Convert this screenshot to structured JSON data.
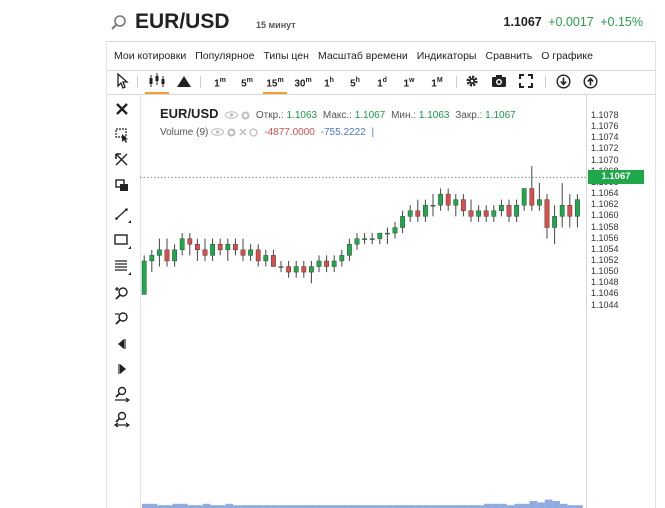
{
  "header": {
    "symbol": "EUR/USD",
    "timeframe": "15 минут",
    "price": "1.1067",
    "change": "+0.0017",
    "change_pct": "+0.15%"
  },
  "menu": {
    "items": [
      "Мои котировки",
      "Популярное",
      "Типы цен",
      "Масштаб времени",
      "Индикаторы",
      "Сравнить",
      "О графике"
    ]
  },
  "toolbar": {
    "intervals": [
      {
        "label": "1",
        "sup": "m"
      },
      {
        "label": "5",
        "sup": "m"
      },
      {
        "label": "15",
        "sup": "m",
        "active": true
      },
      {
        "label": "30",
        "sup": "m"
      },
      {
        "label": "1",
        "sup": "h"
      },
      {
        "label": "5",
        "sup": "h"
      },
      {
        "label": "1",
        "sup": "d"
      },
      {
        "label": "1",
        "sup": "w"
      },
      {
        "label": "1",
        "sup": "M"
      }
    ]
  },
  "legend": {
    "symbol": "EUR/USD",
    "open_label": "Откр.:",
    "open": "1.1063",
    "high_label": "Макс.:",
    "high": "1.1067",
    "low_label": "Мин.:",
    "low": "1.1063",
    "close_label": "Закр.:",
    "close": "1.1067",
    "volume_label": "Volume (9)",
    "volume_val1": "-4877.0000",
    "volume_val2": "-755.2222",
    "volume_cursor": "|"
  },
  "axis": {
    "ticks": [
      "1.1078",
      "1.1076",
      "1.1074",
      "1.1072",
      "1.1070",
      "1.1068",
      "1.1066",
      "1.1064",
      "1.1062",
      "1.1060",
      "1.1058",
      "1.1056",
      "1.1054",
      "1.1052",
      "1.1050",
      "1.1048",
      "1.1046",
      "1.1044"
    ],
    "current_price": "1.1067"
  },
  "colors": {
    "up": "#1fa84a",
    "down": "#d84c4c",
    "accent": "#f0a030",
    "volume": "#6a8fd8"
  },
  "chart_data": {
    "type": "candlestick",
    "ylim": [
      1.1043,
      1.1079
    ],
    "last_price": 1.1067,
    "candles": [
      [
        1.1046,
        1.1053,
        1.1046,
        1.1052
      ],
      [
        1.1052,
        1.1054,
        1.105,
        1.1053
      ],
      [
        1.1053,
        1.1056,
        1.1051,
        1.1054
      ],
      [
        1.1054,
        1.1056,
        1.1051,
        1.1052
      ],
      [
        1.1052,
        1.1055,
        1.1051,
        1.1054
      ],
      [
        1.1054,
        1.1057,
        1.1053,
        1.1056
      ],
      [
        1.1056,
        1.1057,
        1.1053,
        1.1055
      ],
      [
        1.1055,
        1.1056,
        1.1052,
        1.1054
      ],
      [
        1.1054,
        1.1056,
        1.1052,
        1.1053
      ],
      [
        1.1053,
        1.1056,
        1.1052,
        1.1055
      ],
      [
        1.1055,
        1.1056,
        1.1053,
        1.1054
      ],
      [
        1.1054,
        1.1056,
        1.1052,
        1.1055
      ],
      [
        1.1055,
        1.1056,
        1.1053,
        1.1054
      ],
      [
        1.1054,
        1.1056,
        1.1052,
        1.1053
      ],
      [
        1.1053,
        1.1055,
        1.1052,
        1.1054
      ],
      [
        1.1054,
        1.1055,
        1.1051,
        1.1052
      ],
      [
        1.1052,
        1.1054,
        1.1051,
        1.1053
      ],
      [
        1.1053,
        1.1054,
        1.1051,
        1.1051
      ],
      [
        1.1051,
        1.1052,
        1.105,
        1.1051
      ],
      [
        1.1051,
        1.1052,
        1.1049,
        1.105
      ],
      [
        1.105,
        1.1052,
        1.1049,
        1.1051
      ],
      [
        1.1051,
        1.1052,
        1.1049,
        1.105
      ],
      [
        1.105,
        1.1052,
        1.1048,
        1.1051
      ],
      [
        1.1051,
        1.1053,
        1.105,
        1.1052
      ],
      [
        1.1052,
        1.1053,
        1.105,
        1.1051
      ],
      [
        1.1051,
        1.1053,
        1.105,
        1.1052
      ],
      [
        1.1052,
        1.1054,
        1.1051,
        1.1053
      ],
      [
        1.1053,
        1.1056,
        1.1052,
        1.1055
      ],
      [
        1.1055,
        1.1057,
        1.1054,
        1.1056
      ],
      [
        1.1056,
        1.1057,
        1.1055,
        1.1056
      ],
      [
        1.1056,
        1.1057,
        1.1055,
        1.1056
      ],
      [
        1.1056,
        1.1057,
        1.1055,
        1.1057
      ],
      [
        1.1057,
        1.1058,
        1.1055,
        1.1057
      ],
      [
        1.1057,
        1.1059,
        1.1056,
        1.1058
      ],
      [
        1.1058,
        1.1061,
        1.1057,
        1.106
      ],
      [
        1.106,
        1.1062,
        1.1059,
        1.1061
      ],
      [
        1.1061,
        1.1063,
        1.1059,
        1.106
      ],
      [
        1.106,
        1.1063,
        1.1059,
        1.1062
      ],
      [
        1.1062,
        1.1064,
        1.106,
        1.1062
      ],
      [
        1.1062,
        1.1065,
        1.1061,
        1.1064
      ],
      [
        1.1064,
        1.1065,
        1.1061,
        1.1062
      ],
      [
        1.1062,
        1.1064,
        1.106,
        1.1063
      ],
      [
        1.1063,
        1.1064,
        1.106,
        1.1061
      ],
      [
        1.1061,
        1.1063,
        1.1059,
        1.106
      ],
      [
        1.106,
        1.1062,
        1.1059,
        1.1061
      ],
      [
        1.1061,
        1.1062,
        1.1059,
        1.106
      ],
      [
        1.106,
        1.1062,
        1.1059,
        1.1061
      ],
      [
        1.1061,
        1.1063,
        1.106,
        1.1062
      ],
      [
        1.1062,
        1.1063,
        1.1059,
        1.106
      ],
      [
        1.106,
        1.1063,
        1.1059,
        1.1062
      ],
      [
        1.1062,
        1.1065,
        1.1061,
        1.1065
      ],
      [
        1.1065,
        1.1069,
        1.1061,
        1.1062
      ],
      [
        1.1062,
        1.1066,
        1.1061,
        1.1063
      ],
      [
        1.1063,
        1.1064,
        1.1056,
        1.1058
      ],
      [
        1.1058,
        1.1062,
        1.1055,
        1.106
      ],
      [
        1.106,
        1.1066,
        1.1058,
        1.1062
      ],
      [
        1.1062,
        1.1064,
        1.1058,
        1.106
      ],
      [
        1.106,
        1.1064,
        1.1058,
        1.1063
      ]
    ],
    "volume": [
      3,
      3,
      2,
      2,
      3,
      3,
      2,
      2,
      3,
      2,
      2,
      3,
      2,
      2,
      2,
      2,
      2,
      2,
      2,
      2,
      2,
      2,
      2,
      2,
      2,
      2,
      2,
      2,
      2,
      2,
      2,
      2,
      2,
      2,
      2,
      2,
      2,
      2,
      2,
      2,
      2,
      2,
      2,
      2,
      2,
      3,
      3,
      3,
      2,
      3,
      3,
      5,
      4,
      6,
      5,
      3,
      2,
      2
    ]
  }
}
